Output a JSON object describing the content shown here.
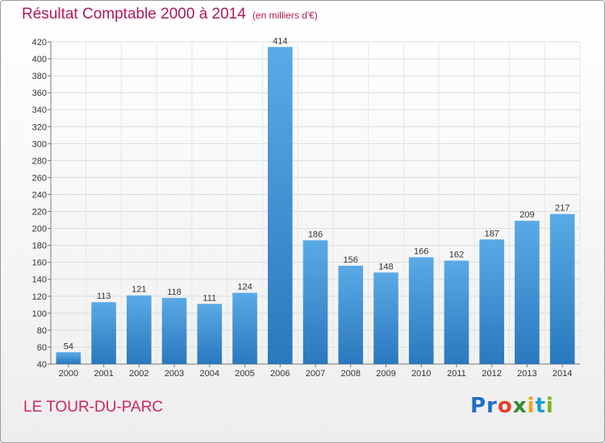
{
  "chart_data": {
    "type": "bar",
    "title": "Résultat Comptable 2000 à 2014",
    "subtitle": "(en milliers d'€)",
    "categories": [
      "2000",
      "2001",
      "2002",
      "2003",
      "2004",
      "2005",
      "2006",
      "2007",
      "2008",
      "2009",
      "2010",
      "2011",
      "2012",
      "2013",
      "2014"
    ],
    "values": [
      54,
      113,
      121,
      118,
      111,
      124,
      414,
      186,
      156,
      148,
      166,
      162,
      187,
      209,
      217
    ],
    "ylim": [
      40,
      420
    ],
    "yticks": [
      40,
      60,
      80,
      100,
      120,
      140,
      160,
      180,
      200,
      220,
      240,
      260,
      280,
      300,
      320,
      340,
      360,
      380,
      400,
      420
    ],
    "xlabel": "",
    "ylabel": "",
    "grid": true,
    "bar_color": "#3d8fd6"
  },
  "footer": {
    "commune": "LE TOUR-DU-PARC",
    "logo": {
      "p1": "Pr",
      "p2": "o",
      "p3": "x",
      "p4": "i",
      "p5": "t",
      "p6": "i"
    }
  }
}
